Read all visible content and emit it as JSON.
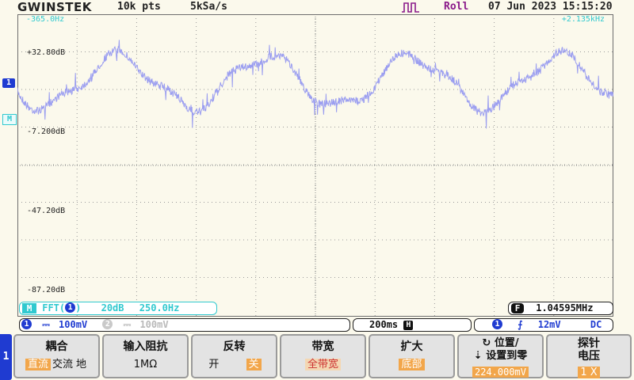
{
  "header": {
    "brand": "GWINSTEK",
    "record_length": "10k pts",
    "sample_rate": "5kSa/s",
    "mode": "Roll",
    "datetime": "07 Jun 2023 15:15:20"
  },
  "screen": {
    "freq_start": "-365.0Hz",
    "freq_end": "+2.135kHz",
    "db_levels": [
      "+32.80dB",
      "-7.200dB",
      "-47.20dB",
      "-87.20dB"
    ],
    "channel_marker": "1",
    "math_marker": "M",
    "trace_color": "#9b9ef0"
  },
  "math_bar": {
    "badge": "M",
    "func": "FFT(",
    "channel": "1",
    "close": ")",
    "scale": "20dB",
    "span": "250.0Hz"
  },
  "freq_counter": {
    "badge": "F",
    "value": "1.04595MHz"
  },
  "channel_bar": {
    "ch1_id": "1",
    "ch1_coupling": "⎓",
    "ch1_scale": "100mV",
    "ch2_id": "2",
    "ch2_coupling": "⎓",
    "ch2_scale": "100mV"
  },
  "timebase": {
    "value": "200ms",
    "badge": "H"
  },
  "trigger_bar": {
    "source": "1",
    "slope": "⨍",
    "level": "12mV",
    "coupling": "DC"
  },
  "menu": {
    "tab": "1",
    "keys": [
      {
        "title": "耦合",
        "options": [
          "直流",
          "交流",
          "地"
        ],
        "selected": 0
      },
      {
        "title": "输入阻抗",
        "value": "1MΩ"
      },
      {
        "title": "反转",
        "options": [
          "开",
          "关"
        ],
        "selected": 1
      },
      {
        "title": "带宽",
        "value": "全带宽"
      },
      {
        "title": "扩大",
        "value": "底部"
      },
      {
        "title": "↻ 位置/",
        "title2": "⇣ 设置到零",
        "value": "224.000mV"
      },
      {
        "title": "探针",
        "title2": "电压",
        "value": "1 X"
      }
    ]
  }
}
